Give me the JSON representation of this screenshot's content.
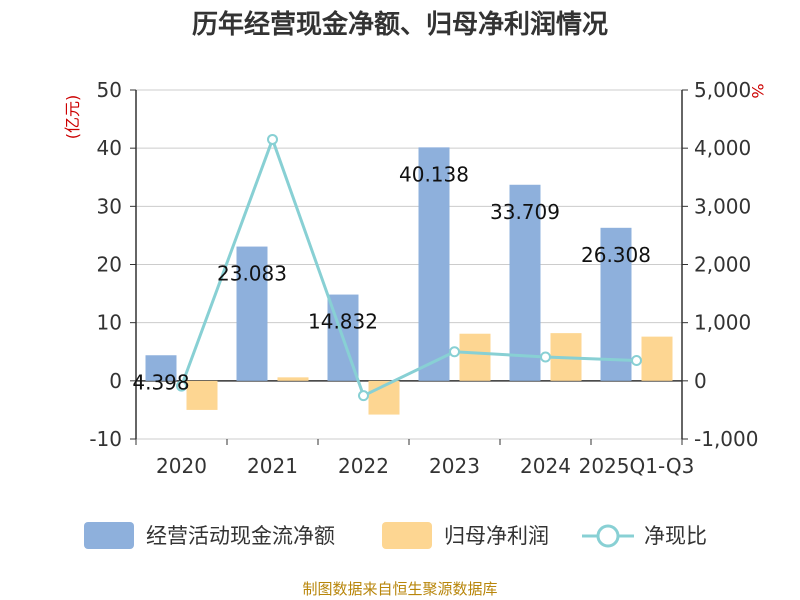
{
  "chart_data": {
    "type": "bar",
    "title": "历年经营现金净额、归母净利润情况",
    "categories": [
      "2020",
      "2021",
      "2022",
      "2023",
      "2024",
      "2025Q1-Q3"
    ],
    "left_axis": {
      "unit": "(亿元)",
      "ylim": [
        -10,
        50
      ],
      "ticks": [
        "50",
        "40",
        "30",
        "20",
        "10",
        "0",
        "-10"
      ]
    },
    "right_axis": {
      "unit": "%",
      "ylim": [
        -1000,
        5000
      ],
      "ticks": [
        "5,000",
        "4,000",
        "3,000",
        "2,000",
        "1,000",
        "0",
        "-1,000"
      ]
    },
    "series": [
      {
        "name": "经营活动现金流净额",
        "type": "bar",
        "axis": "left",
        "color": "#8eb0dc",
        "values": [
          4.398,
          23.083,
          14.832,
          40.138,
          33.709,
          26.308
        ],
        "labels": [
          "4.398",
          "23.083",
          "14.832",
          "40.138",
          "33.709",
          "26.308"
        ]
      },
      {
        "name": "归母净利润",
        "type": "bar",
        "axis": "left",
        "color": "#fdd692",
        "values": [
          -5.0,
          0.6,
          -5.8,
          8.1,
          8.2,
          7.6
        ]
      },
      {
        "name": "净现比",
        "type": "line",
        "axis": "right",
        "color": "#88d0d4",
        "values": [
          -90,
          4150,
          -255,
          500,
          410,
          350
        ]
      }
    ],
    "grid": true,
    "legend_position": "bottom"
  },
  "footer": {
    "source": "制图数据来自恒生聚源数据库"
  }
}
